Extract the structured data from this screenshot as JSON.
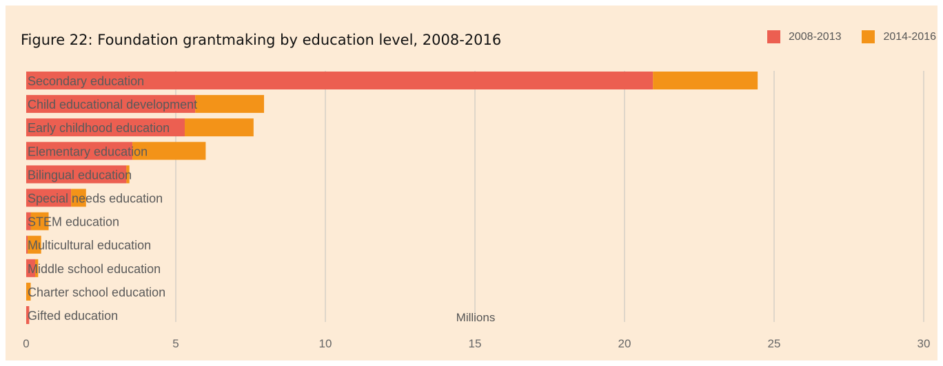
{
  "chart_data": {
    "type": "bar",
    "orientation": "horizontal",
    "stacked": true,
    "title": "Figure 22: Foundation grantmaking by education level, 2008-2016",
    "xlabel": "Millions",
    "xlim": [
      0,
      30
    ],
    "xticks": [
      0,
      5,
      10,
      15,
      20,
      25,
      30
    ],
    "grid": true,
    "legend_position": "top-right",
    "categories": [
      "Secondary education",
      "Child educational development",
      "Early childhood education",
      "Elementary education",
      "Bilingual education",
      "Special needs education",
      "STEM education",
      "Multicultural education",
      "Middle school education",
      "Charter school education",
      "Gifted education"
    ],
    "series": [
      {
        "name": "2008-2013",
        "color": "#ec5f51",
        "values": [
          20.95,
          5.65,
          5.3,
          3.55,
          3.35,
          1.5,
          0.15,
          0.05,
          0.3,
          0.0,
          0.1
        ]
      },
      {
        "name": "2014-2016",
        "color": "#f39318",
        "values": [
          3.5,
          2.3,
          2.3,
          2.45,
          0.1,
          0.5,
          0.6,
          0.45,
          0.1,
          0.15,
          0.0
        ]
      }
    ]
  }
}
